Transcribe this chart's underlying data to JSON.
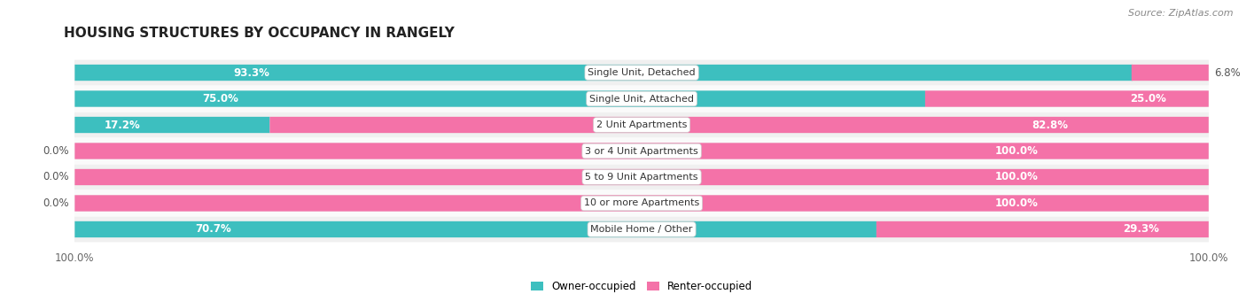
{
  "title": "HOUSING STRUCTURES BY OCCUPANCY IN RANGELY",
  "source": "Source: ZipAtlas.com",
  "categories": [
    "Single Unit, Detached",
    "Single Unit, Attached",
    "2 Unit Apartments",
    "3 or 4 Unit Apartments",
    "5 to 9 Unit Apartments",
    "10 or more Apartments",
    "Mobile Home / Other"
  ],
  "owner_pct": [
    93.3,
    75.0,
    17.2,
    0.0,
    0.0,
    0.0,
    70.7
  ],
  "renter_pct": [
    6.8,
    25.0,
    82.8,
    100.0,
    100.0,
    100.0,
    29.3
  ],
  "owner_color": "#3dbfbf",
  "renter_color": "#f472a8",
  "renter_light": "#f9b8d0",
  "bar_bg": "#e8e8e8",
  "row_bg": "#f5f5f5",
  "fig_bg": "#ffffff",
  "bar_height": 0.62,
  "title_fontsize": 11,
  "label_fontsize": 8.5,
  "tick_fontsize": 8.5,
  "source_fontsize": 8
}
